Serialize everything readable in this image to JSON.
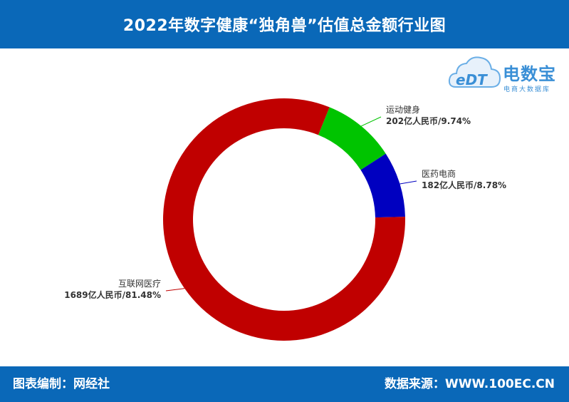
{
  "header": {
    "title": "2022年数字健康“独角兽”估值总金额行业图"
  },
  "footer": {
    "editor": "图表编制：网经社",
    "source": "数据来源：WWW.100EC.CN"
  },
  "logo": {
    "brand": "电数宝",
    "tagline": "电商大数据库",
    "mark": "eDT"
  },
  "chart_data": {
    "type": "pie",
    "variant": "donut",
    "title": "2022年数字健康“独角兽”估值总金额行业图",
    "unit": "亿人民币",
    "slices": [
      {
        "name": "运动健身",
        "value": 202,
        "percent": 9.74,
        "color": "#00c400",
        "label": "202亿人民币/9.74%"
      },
      {
        "name": "医药电商",
        "value": 182,
        "percent": 8.78,
        "color": "#0000c0",
        "label": "182亿人民币/8.78%"
      },
      {
        "name": "互联网医疗",
        "value": 1689,
        "percent": 81.48,
        "color": "#c00000",
        "label": "1689亿人民币/81.48%"
      }
    ]
  }
}
